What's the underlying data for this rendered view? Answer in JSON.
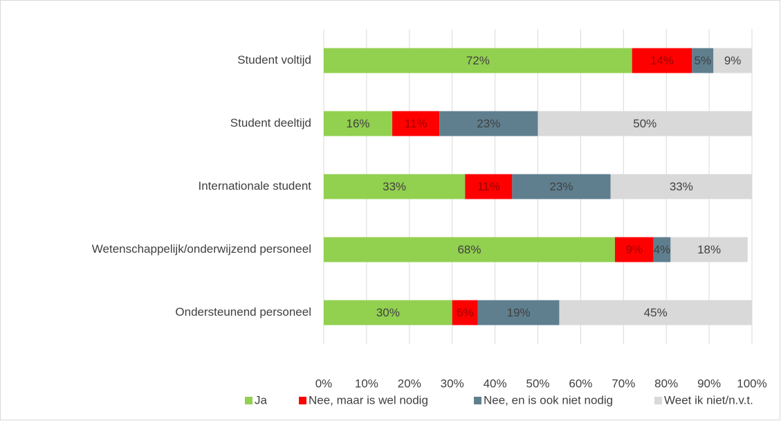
{
  "chart_data": {
    "type": "stacked_bar_horizontal",
    "categories": [
      "Student voltijd",
      "Student deeltijd",
      "Internationale student",
      "Wetenschappelijk/onderwijzend personeel",
      "Ondersteunend personeel"
    ],
    "series": [
      {
        "name": "Ja",
        "color": "#92d050",
        "values": [
          72,
          16,
          33,
          68,
          30
        ],
        "value_labels": [
          "72%",
          "16%",
          "33%",
          "68%",
          "30%"
        ]
      },
      {
        "name": "Nee, maar is wel nodig",
        "color": "#ff0000",
        "values": [
          14,
          11,
          11,
          9,
          6
        ],
        "value_labels": [
          "14%",
          "11%",
          "11%",
          "9%",
          "6%"
        ]
      },
      {
        "name": "Nee, en is ook niet nodig",
        "color": "#5f7f8f",
        "values": [
          5,
          23,
          23,
          4,
          19
        ],
        "value_labels": [
          "5%",
          "23%",
          "23%",
          "4%",
          "19%"
        ]
      },
      {
        "name": "Weet ik niet/n.v.t.",
        "color": "#d9d9d9",
        "values": [
          9,
          50,
          33,
          18,
          45
        ],
        "value_labels": [
          "9%",
          "50%",
          "33%",
          "18%",
          "45%"
        ]
      }
    ],
    "xlim": [
      0,
      100
    ],
    "xticks": [
      {
        "value": 0,
        "label": "0%"
      },
      {
        "value": 10,
        "label": "10%"
      },
      {
        "value": 20,
        "label": "20%"
      },
      {
        "value": 30,
        "label": "30%"
      },
      {
        "value": 40,
        "label": "40%"
      },
      {
        "value": 50,
        "label": "50%"
      },
      {
        "value": 60,
        "label": "60%"
      },
      {
        "value": 70,
        "label": "70%"
      },
      {
        "value": 80,
        "label": "80%"
      },
      {
        "value": 90,
        "label": "90%"
      },
      {
        "value": 100,
        "label": "100%"
      }
    ],
    "grid": true,
    "legend": "bottom"
  }
}
